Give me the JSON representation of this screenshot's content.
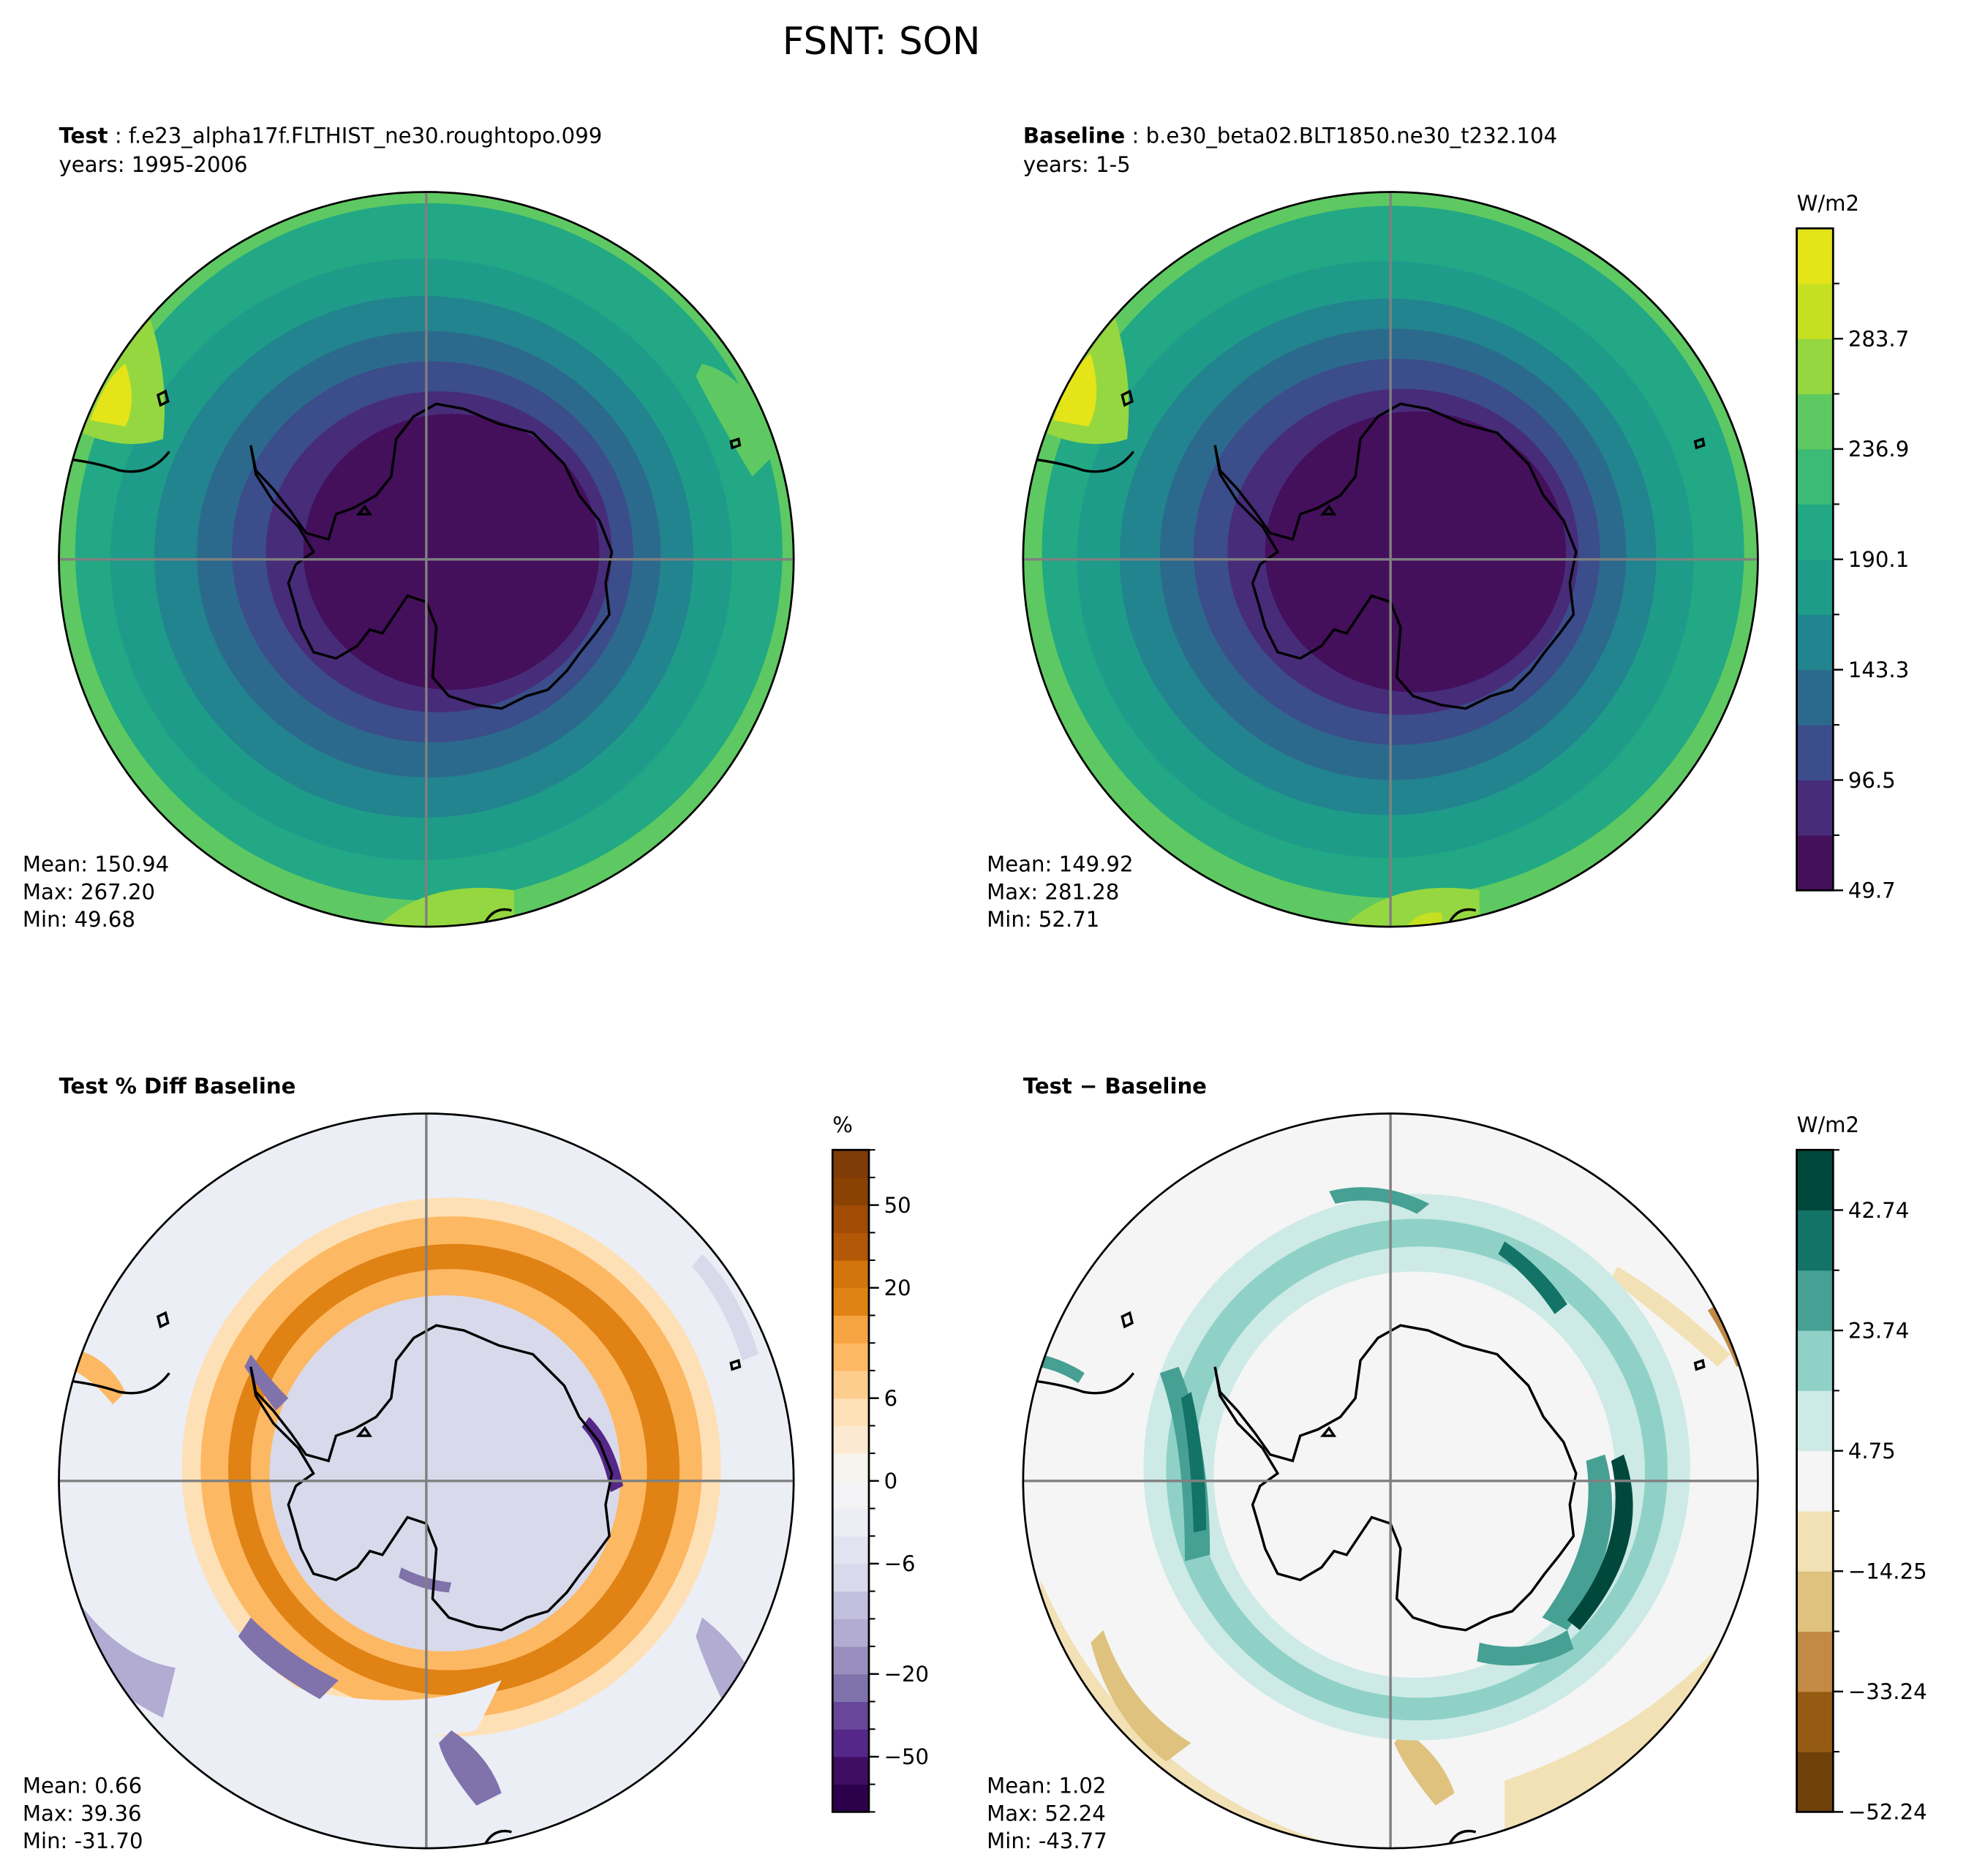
{
  "figure": {
    "title": "FSNT: SON"
  },
  "chart_data": [
    {
      "type": "heatmap",
      "projection": "south-polar-stereographic",
      "title_bold": "Test",
      "title_case": "f.e23_alpha17f.FLTHIST_ne30.roughtopo.099",
      "subtitle": "years: 1995-2006",
      "colormap": "viridis",
      "units": "W/m2",
      "levels": [
        49.7,
        73.1,
        96.5,
        119.9,
        143.3,
        166.7,
        190.1,
        213.5,
        236.9,
        260.3,
        283.7,
        307.1
      ],
      "stats": {
        "mean": "Mean: 150.94",
        "max": "Max: 267.20",
        "min": "Min: 49.68"
      }
    },
    {
      "type": "heatmap",
      "projection": "south-polar-stereographic",
      "title_bold": "Baseline",
      "title_case": "b.e30_beta02.BLT1850.ne30_t232.104",
      "subtitle": "years: 1-5",
      "colormap": "viridis",
      "units": "W/m2",
      "colorbar": {
        "label": "W/m2",
        "levels": [
          49.7,
          73.1,
          96.5,
          119.9,
          143.3,
          166.7,
          190.1,
          213.5,
          236.9,
          260.3,
          283.7,
          307.1
        ],
        "tick_labels": [
          "49.7",
          "96.5",
          "143.3",
          "190.1",
          "236.9",
          "283.7"
        ],
        "colors": [
          "#440f5b",
          "#472c7a",
          "#3b4d8a",
          "#2c6a8d",
          "#21848e",
          "#1e9c89",
          "#22a884",
          "#3bbb75",
          "#5ec962",
          "#95d740",
          "#c5e021",
          "#e4e419"
        ]
      },
      "stats": {
        "mean": "Mean: 149.92",
        "max": "Max: 281.28",
        "min": "Min: 52.71"
      }
    },
    {
      "type": "heatmap",
      "projection": "south-polar-stereographic",
      "title_bold": "Test % Diff Baseline",
      "colormap": "PuOr_r",
      "units": "%",
      "colorbar": {
        "label": "%",
        "levels": [
          -100,
          -70,
          -50,
          -40,
          -30,
          -20,
          -15,
          -10,
          -8,
          -6,
          -4,
          -2,
          0,
          2,
          4,
          6,
          8,
          10,
          15,
          20,
          30,
          40,
          50,
          70,
          100
        ],
        "tick_labels": [
          "−50",
          "−20",
          "−6",
          "0",
          "6",
          "20",
          "50"
        ],
        "colors": [
          "#2d004b",
          "#3f0e63",
          "#542788",
          "#68479a",
          "#8073ac",
          "#998fbf",
          "#b2abd2",
          "#c3bfdf",
          "#d8daeb",
          "#e2e3f0",
          "#eceef5",
          "#f3f3f6",
          "#f7f4ee",
          "#fbe9d1",
          "#fee0b6",
          "#fdcd8e",
          "#fdb863",
          "#f6a442",
          "#e08214",
          "#d4740c",
          "#b35806",
          "#a04c05",
          "#8a4203",
          "#7f3b08"
        ]
      },
      "stats": {
        "mean": "Mean:  0.66",
        "max": "Max: 39.36",
        "min": "Min: -31.70"
      }
    },
    {
      "type": "heatmap",
      "projection": "south-polar-stereographic",
      "title_bold": "Test − Baseline",
      "colormap": "BrBG",
      "units": "W/m2",
      "colorbar": {
        "label": "W/m2",
        "levels": [
          -52.24,
          -42.74,
          -33.24,
          -23.74,
          -14.25,
          -4.75,
          4.75,
          14.25,
          23.74,
          33.24,
          42.74,
          52.24
        ],
        "tick_labels": [
          "−52.24",
          "−33.24",
          "−14.25",
          "4.75",
          "23.74",
          "42.74"
        ],
        "colors": [
          "#6e4109",
          "#955b13",
          "#c28a45",
          "#dfc27d",
          "#f1e1b5",
          "#f5f5f5",
          "#cdeae6",
          "#8fd1c6",
          "#46a093",
          "#137367",
          "#00483c"
        ]
      },
      "stats": {
        "mean": "Mean:  1.02",
        "max": "Max: 52.24",
        "min": "Min: -43.77"
      }
    }
  ]
}
